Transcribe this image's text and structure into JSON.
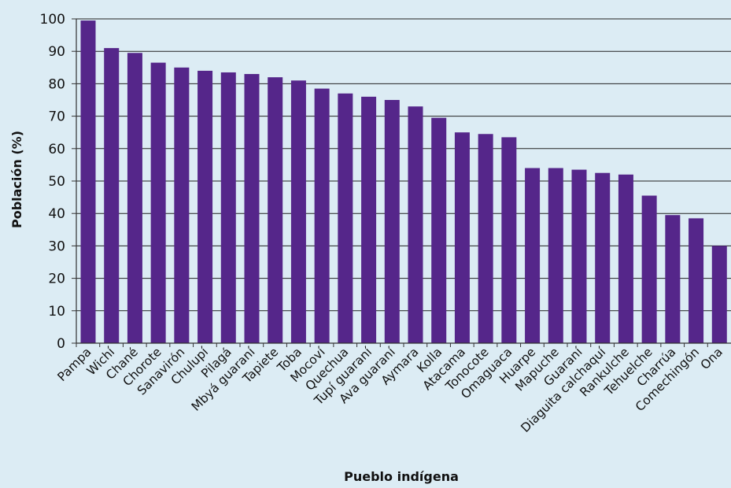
{
  "chart_data": {
    "type": "bar",
    "title": "",
    "xlabel": "Pueblo indígena",
    "ylabel": "Población (%)",
    "ylim": [
      0,
      100
    ],
    "yticks": [
      0,
      10,
      20,
      30,
      40,
      50,
      60,
      70,
      80,
      90,
      100
    ],
    "grid": "horizontal",
    "legend": "none",
    "bar_color": "#55268a",
    "background": "#dcecf4",
    "categories": [
      "Pampa",
      "Wichí",
      "Chané",
      "Chorote",
      "Sanavirón",
      "Chulupí",
      "Pilagá",
      "Mbyá guaraní",
      "Tapiete",
      "Toba",
      "Mocoví",
      "Quechua",
      "Tupí guaraní",
      "Ava guaraní",
      "Aymara",
      "Kolla",
      "Atacama",
      "Tonocote",
      "Omaguaca",
      "Huarpe",
      "Mapuche",
      "Guaraní",
      "Diaguita calchaquí",
      "Rankulche",
      "Tehuelche",
      "Charrúa",
      "Comechingón",
      "Ona"
    ],
    "values": [
      99.5,
      91,
      89.5,
      86.5,
      85,
      84,
      83.5,
      83,
      82,
      81,
      78.5,
      77,
      76,
      75,
      73,
      69.5,
      65,
      64.5,
      63.5,
      54,
      54,
      53.5,
      52.5,
      52,
      45.5,
      39.5,
      38.5,
      30
    ]
  }
}
